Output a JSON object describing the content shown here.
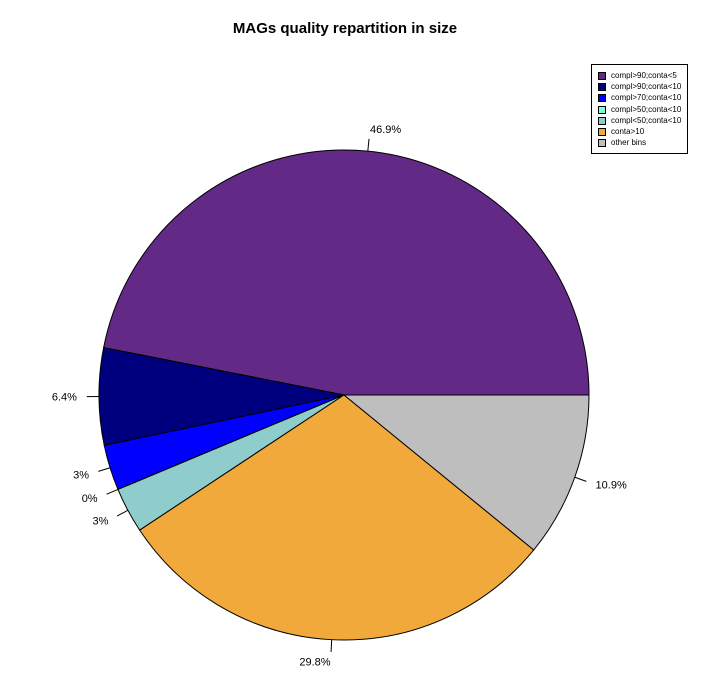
{
  "chart_data": {
    "type": "pie",
    "title": "MAGs quality repartition in size",
    "slices": [
      {
        "name": "compl>90;conta<5",
        "value": 46.9,
        "label": "46.9%",
        "color": "#622A86"
      },
      {
        "name": "compl>90;conta<10",
        "value": 6.4,
        "label": "6.4%",
        "color": "#00007F"
      },
      {
        "name": "compl>70;conta<10",
        "value": 3.0,
        "label": "3%",
        "color": "#0000FF"
      },
      {
        "name": "compl>50;conta<10",
        "value": 0.0,
        "label": "0%",
        "color": "#7FFFD4"
      },
      {
        "name": "compl<50;conta<10",
        "value": 3.0,
        "label": "3%",
        "color": "#8FCCCC"
      },
      {
        "name": "conta>10",
        "value": 29.8,
        "label": "29.8%",
        "color": "#F2A93B"
      },
      {
        "name": "other bins",
        "value": 10.9,
        "label": "10.9%",
        "color": "#BEBEBE"
      }
    ],
    "direction": "counterclockwise",
    "start_angle_deg": 0,
    "legend_placement": "top-right"
  }
}
